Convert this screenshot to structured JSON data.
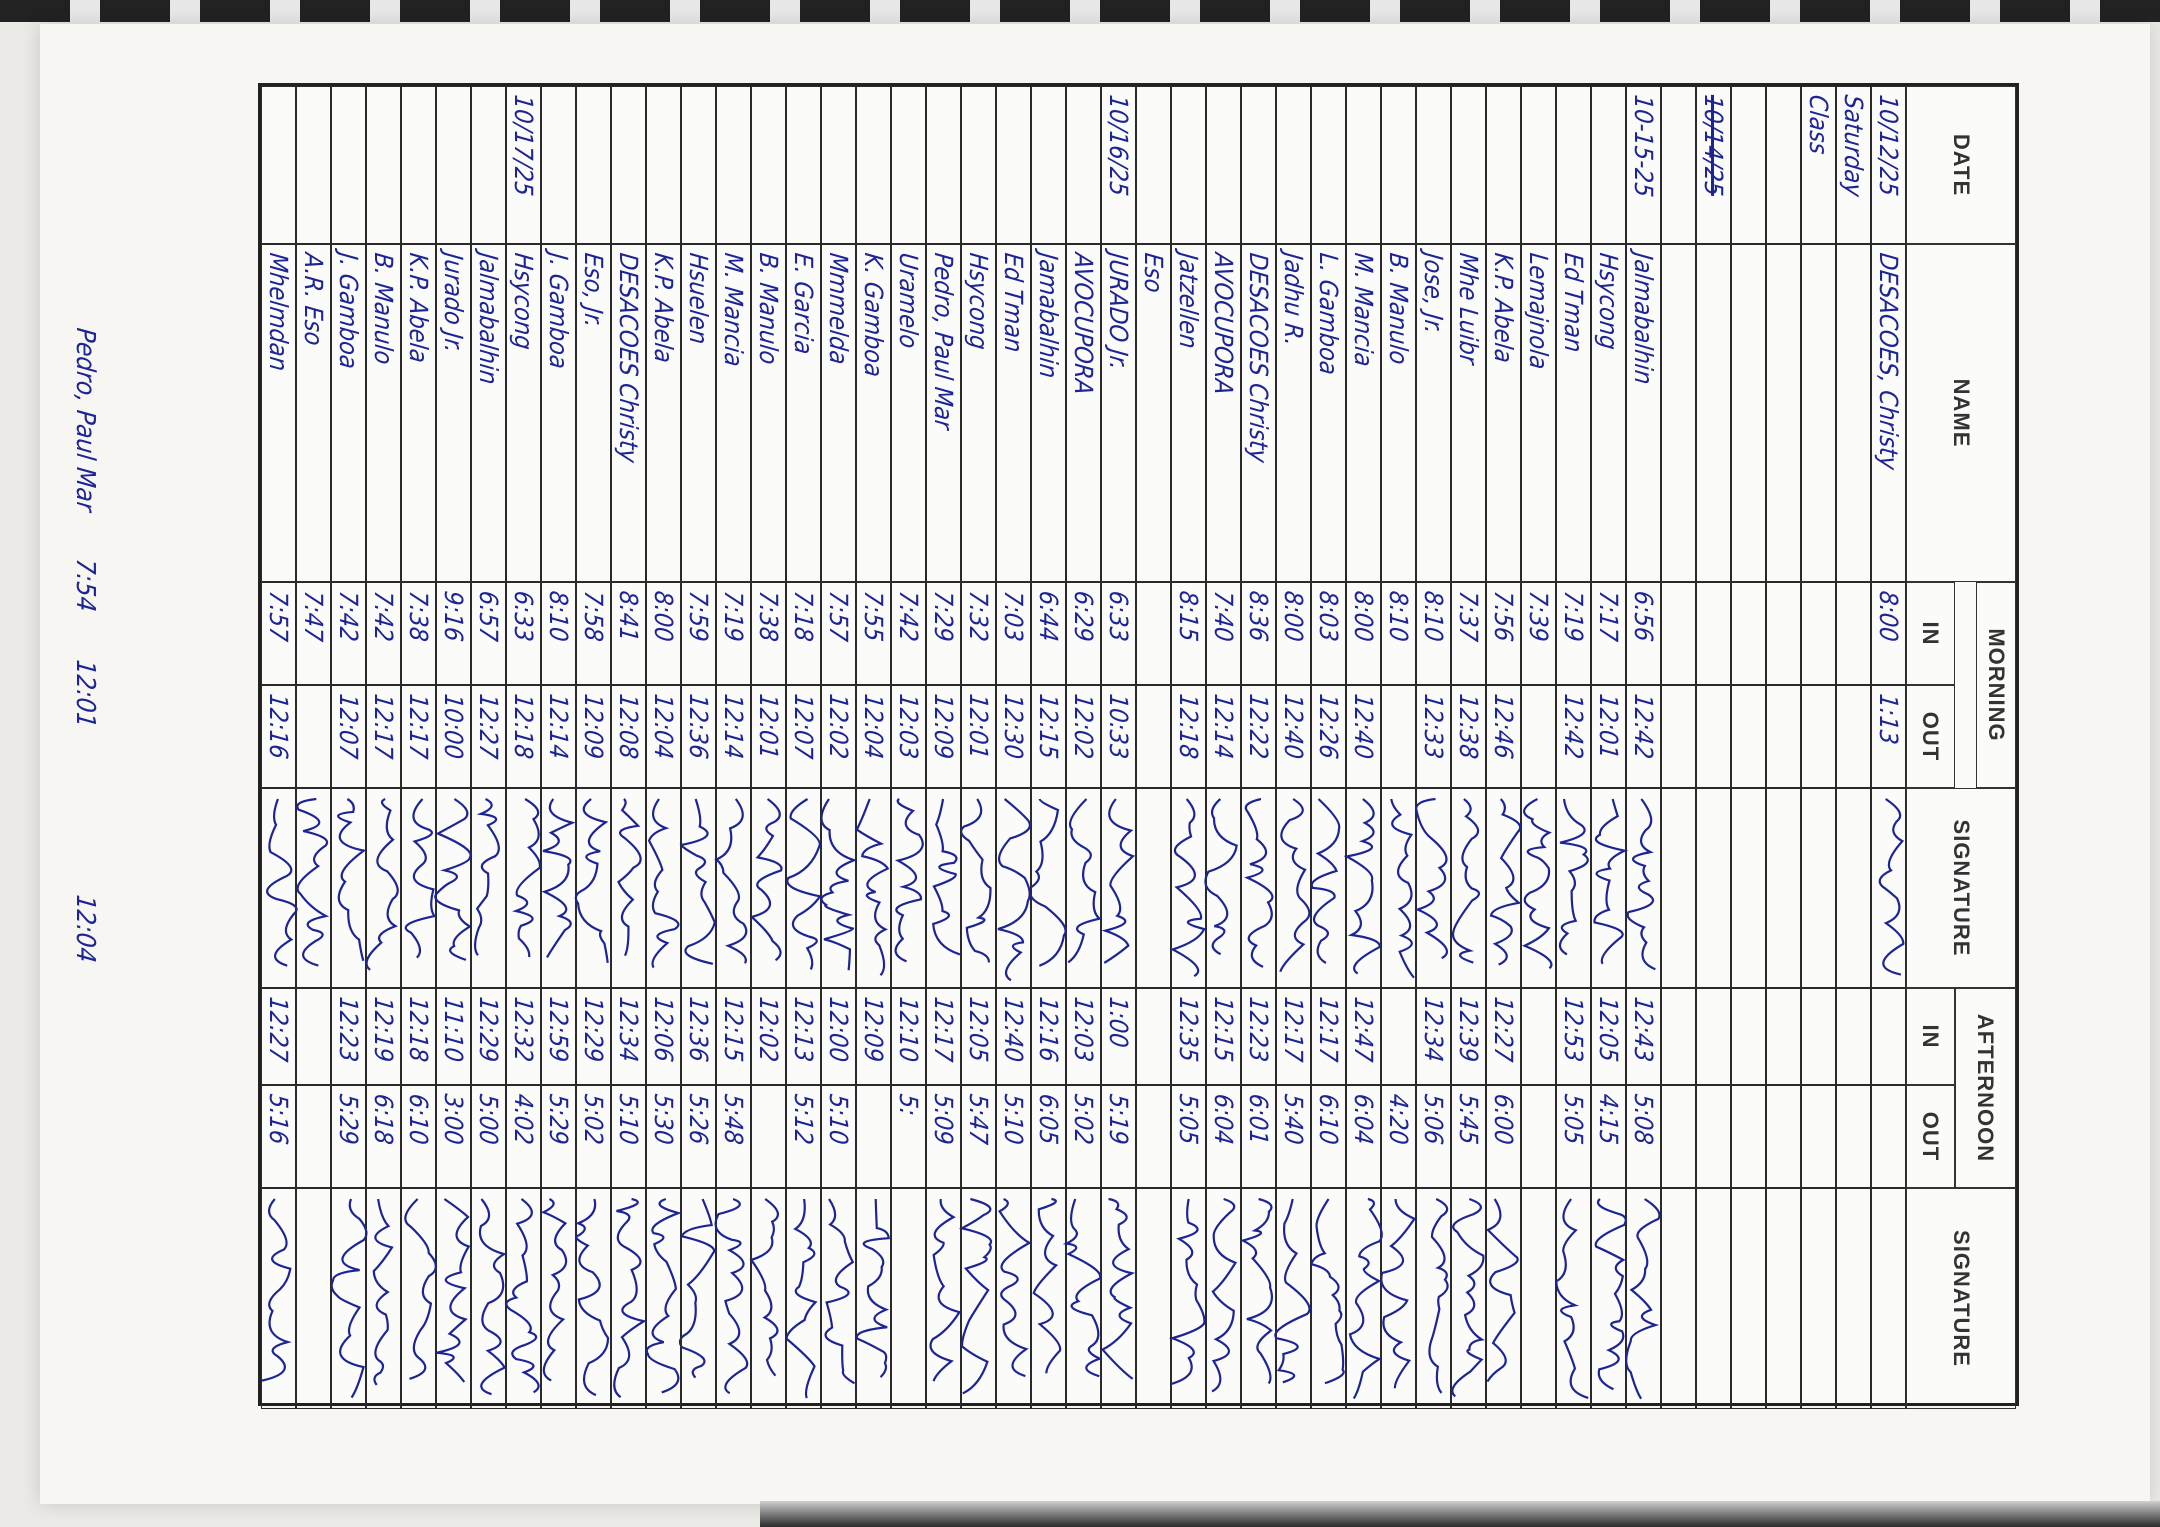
{
  "header": {
    "date": "DATE",
    "name": "NAME",
    "morning": "MORNING",
    "afternoon": "AFTERNOON",
    "in": "IN",
    "out": "OUT",
    "signature": "SIGNATURE"
  },
  "ink_color": "#1d2594",
  "rows": [
    {
      "date": "10/12/25",
      "name": "DESACOES, Christy",
      "am_in": "8:00",
      "am_out": "1:13",
      "am_sig": true
    },
    {
      "date": "Saturday"
    },
    {
      "date": "Class"
    },
    {},
    {},
    {
      "date": "10/14/25",
      "struck": true
    },
    {},
    {
      "date": "10-15-25",
      "name": "Jalmabalhin",
      "am_in": "6:56",
      "am_out": "12:42",
      "am_sig": true,
      "pm_in": "12:43",
      "pm_out": "5:08",
      "pm_sig": true
    },
    {
      "name": "Hsycong",
      "am_in": "7:17",
      "am_out": "12:01",
      "am_sig": true,
      "pm_in": "12:05",
      "pm_out": "4:15",
      "pm_sig": true
    },
    {
      "name": "Ed Tman",
      "am_in": "7:19",
      "am_out": "12:42",
      "am_sig": true,
      "pm_in": "12:53",
      "pm_out": "5:05",
      "pm_sig": true
    },
    {
      "name": "Lemajnola",
      "am_in": "7:39",
      "am_sig": true
    },
    {
      "name": "K.P. Abela",
      "am_in": "7:56",
      "am_out": "12:46",
      "am_sig": true,
      "pm_in": "12:27",
      "pm_out": "6:00",
      "pm_sig": true
    },
    {
      "name": "Mhe Luibr",
      "am_in": "7:37",
      "am_out": "12:38",
      "am_sig": true,
      "pm_in": "12:39",
      "pm_out": "5:45",
      "pm_sig": true
    },
    {
      "name": "Jose, Jr.",
      "am_in": "8:10",
      "am_out": "12:33",
      "am_sig": true,
      "pm_in": "12:34",
      "pm_out": "5:06",
      "pm_sig": true
    },
    {
      "name": "B. Manulo",
      "am_in": "8:10",
      "am_sig": true,
      "pm_out": "4:20",
      "pm_sig": true
    },
    {
      "name": "M. Mancia",
      "am_in": "8:00",
      "am_out": "12:40",
      "am_sig": true,
      "pm_in": "12:47",
      "pm_out": "6:04",
      "pm_sig": true
    },
    {
      "name": "L. Gamboa",
      "am_in": "8:03",
      "am_out": "12:26",
      "am_sig": true,
      "pm_in": "12:17",
      "pm_out": "6:10",
      "pm_sig": true
    },
    {
      "name": "Jadhu R.",
      "am_in": "8:00",
      "am_out": "12:40",
      "am_sig": true,
      "pm_in": "12:17",
      "pm_out": "5:40",
      "pm_sig": true
    },
    {
      "name": "DESACOES Christy",
      "am_in": "8:36",
      "am_out": "12:22",
      "am_sig": true,
      "pm_in": "12:23",
      "pm_out": "6:01",
      "pm_sig": true
    },
    {
      "name": "AVOCUPORA",
      "am_in": "7:40",
      "am_out": "12:14",
      "am_sig": true,
      "pm_in": "12:15",
      "pm_out": "6:04",
      "pm_sig": true
    },
    {
      "name": "Jatzellen",
      "am_in": "8:15",
      "am_out": "12:18",
      "am_sig": true,
      "pm_in": "12:35",
      "pm_out": "5:05",
      "pm_sig": true
    },
    {
      "name": "Eso"
    },
    {
      "date": "10/16/25",
      "name": "JURADO Jr.",
      "am_in": "6:33",
      "am_out": "10:33",
      "am_sig": true,
      "pm_in": "1:00",
      "pm_out": "5:19",
      "pm_sig": true
    },
    {
      "name": "AVOCUPORA",
      "am_in": "6:29",
      "am_out": "12:02",
      "am_sig": true,
      "pm_in": "12:03",
      "pm_out": "5:02",
      "pm_sig": true
    },
    {
      "name": "Jamabalhin",
      "am_in": "6:44",
      "am_out": "12:15",
      "am_sig": true,
      "pm_in": "12:16",
      "pm_out": "6:05",
      "pm_sig": true
    },
    {
      "name": "Ed Tman",
      "am_in": "7:03",
      "am_out": "12:30",
      "am_sig": true,
      "pm_in": "12:40",
      "pm_out": "5:10",
      "pm_sig": true
    },
    {
      "name": "Hsycong",
      "am_in": "7:32",
      "am_out": "12:01",
      "am_sig": true,
      "pm_in": "12:05",
      "pm_out": "5:47",
      "pm_sig": true
    },
    {
      "name": "Pedro, Paul Mar",
      "am_in": "7:29",
      "am_out": "12:09",
      "am_sig": true,
      "pm_in": "12:17",
      "pm_out": "5:09",
      "pm_sig": true
    },
    {
      "name": "Uramelo",
      "am_in": "7:42",
      "am_out": "12:03",
      "am_sig": true,
      "pm_in": "12:10",
      "pm_out": "5:",
      "pm_sig": false
    },
    {
      "name": "K. Gamboa",
      "am_in": "7:55",
      "am_out": "12:04",
      "am_sig": true,
      "pm_in": "12:09",
      "pm_sig": true
    },
    {
      "name": "Mmmelda",
      "am_in": "7:57",
      "am_out": "12:02",
      "am_sig": true,
      "pm_in": "12:00",
      "pm_out": "5:10",
      "pm_sig": true
    },
    {
      "name": "E. Garcia",
      "am_in": "7:18",
      "am_out": "12:07",
      "am_sig": true,
      "pm_in": "12:13",
      "pm_out": "5:12",
      "pm_sig": true
    },
    {
      "name": "B. Manulo",
      "am_in": "7:38",
      "am_out": "12:01",
      "am_sig": true,
      "pm_in": "12:02",
      "pm_sig": true
    },
    {
      "name": "M. Mancia",
      "am_in": "7:19",
      "am_out": "12:14",
      "am_sig": true,
      "pm_in": "12:15",
      "pm_out": "5:48",
      "pm_sig": true
    },
    {
      "name": "Hsuelen",
      "am_in": "7:59",
      "am_out": "12:36",
      "am_sig": true,
      "pm_in": "12:36",
      "pm_out": "5:26",
      "pm_sig": true
    },
    {
      "name": "K.P. Abela",
      "am_in": "8:00",
      "am_out": "12:04",
      "am_sig": true,
      "pm_in": "12:06",
      "pm_out": "5:30",
      "pm_sig": true
    },
    {
      "name": "DESACOES Christy",
      "am_in": "8:41",
      "am_out": "12:08",
      "am_sig": true,
      "pm_in": "12:34",
      "pm_out": "5:10",
      "pm_sig": true
    },
    {
      "name": "Eso, Jr.",
      "am_in": "7:58",
      "am_out": "12:09",
      "am_sig": true,
      "pm_in": "12:29",
      "pm_out": "5:02",
      "pm_sig": true
    },
    {
      "name": "J. Gamboa",
      "am_in": "8:10",
      "am_out": "12:14",
      "am_sig": true,
      "pm_in": "12:59",
      "pm_out": "5:29",
      "pm_sig": true
    },
    {
      "date": "10/17/25",
      "name": "Hsycong",
      "am_in": "6:33",
      "am_out": "12:18",
      "am_sig": true,
      "pm_in": "12:32",
      "pm_out": "4:02",
      "pm_sig": true
    },
    {
      "name": "Jalmabalhin",
      "am_in": "6:57",
      "am_out": "12:27",
      "am_sig": true,
      "pm_in": "12:29",
      "pm_out": "5:00",
      "pm_sig": true
    },
    {
      "name": "Jurado Jr.",
      "am_in": "9:16",
      "am_out": "10:00",
      "am_sig": true,
      "pm_in": "11:10",
      "pm_out": "3:00",
      "pm_sig": true
    },
    {
      "name": "K.P. Abela",
      "am_in": "7:38",
      "am_out": "12:17",
      "am_sig": true,
      "pm_in": "12:18",
      "pm_out": "6:10",
      "pm_sig": true
    },
    {
      "name": "B. Manulo",
      "am_in": "7:42",
      "am_out": "12:17",
      "am_sig": true,
      "pm_in": "12:19",
      "pm_out": "6:18",
      "pm_sig": true
    },
    {
      "name": "J. Gamboa",
      "am_in": "7:42",
      "am_out": "12:07",
      "am_sig": true,
      "pm_in": "12:23",
      "pm_out": "5:29",
      "pm_sig": true
    },
    {
      "name": "A.R. Eso",
      "am_in": "7:47",
      "am_sig": true
    },
    {
      "name": "Mhelmdan",
      "am_in": "7:57",
      "am_out": "12:16",
      "am_sig": true,
      "pm_in": "12:27",
      "pm_out": "5:16",
      "pm_sig": true
    }
  ],
  "margin_note": {
    "name": "Pedro, Paul Mar",
    "am_in": "7:54",
    "am_out": "12:01",
    "pm_in": "12:04"
  }
}
